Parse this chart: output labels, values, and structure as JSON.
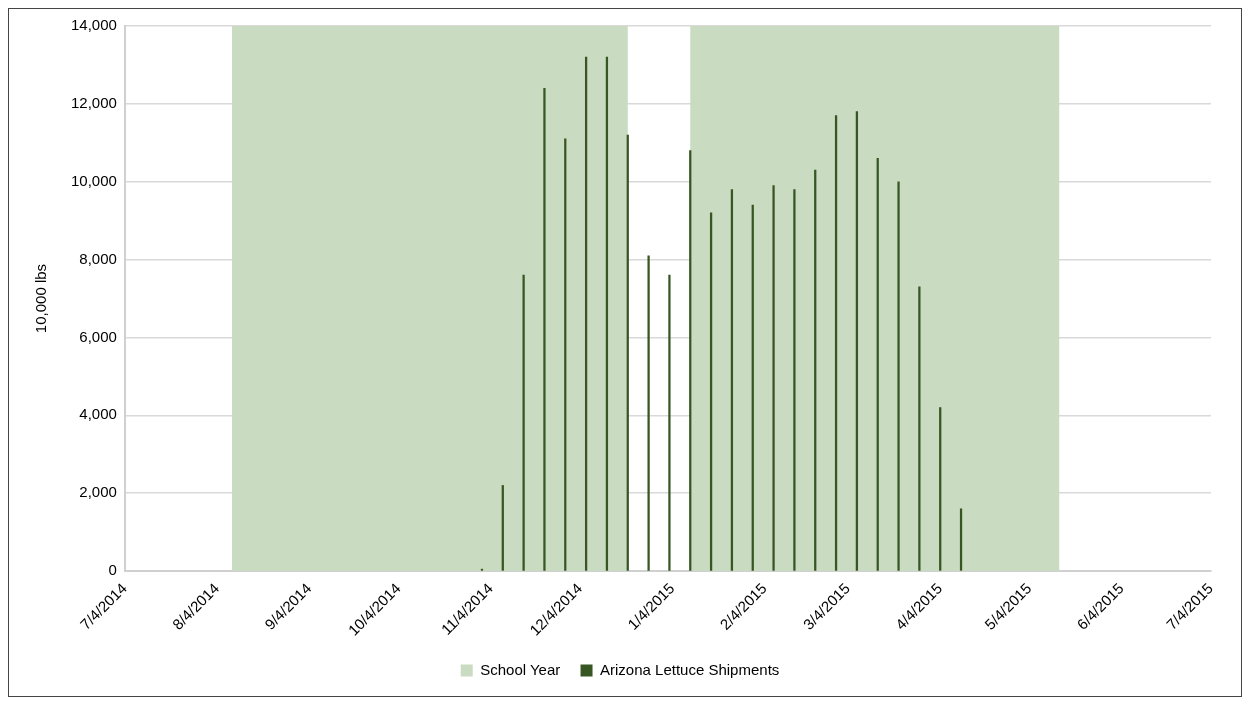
{
  "chart_data": {
    "type": "bar",
    "ylabel": "10,000 lbs",
    "x": [
      "2014-11-01",
      "2014-11-08",
      "2014-11-15",
      "2014-11-22",
      "2014-11-29",
      "2014-12-06",
      "2014-12-13",
      "2014-12-20",
      "2014-12-27",
      "2015-01-03",
      "2015-01-10",
      "2015-01-17",
      "2015-01-24",
      "2015-01-31",
      "2015-02-07",
      "2015-02-14",
      "2015-02-21",
      "2015-02-28",
      "2015-03-07",
      "2015-03-14",
      "2015-03-21",
      "2015-03-28",
      "2015-04-04",
      "2015-04-11"
    ],
    "series": [
      {
        "name": "Arizona Lettuce Shipments",
        "color": "#375623",
        "values": [
          50,
          2200,
          7600,
          12400,
          11100,
          13200,
          13200,
          11200,
          8100,
          7600,
          10800,
          9200,
          9800,
          9400,
          9900,
          9800,
          10300,
          11700,
          11800,
          10600,
          10000,
          7300,
          4200,
          1600
        ]
      }
    ],
    "bands": [
      {
        "axis": "x",
        "from": "2014-08-09",
        "to": "2014-12-20",
        "label": "School Year",
        "color": "#c9dbc1"
      },
      {
        "axis": "x",
        "from": "2015-01-10",
        "to": "2015-05-14",
        "color": "#c9dbc1"
      }
    ],
    "xlim": [
      "2014-07-04",
      "2015-07-04"
    ],
    "xticks": [
      {
        "value": "2014-07-04",
        "label": "7/4/2014"
      },
      {
        "value": "2014-08-04",
        "label": "8/4/2014"
      },
      {
        "value": "2014-09-04",
        "label": "9/4/2014"
      },
      {
        "value": "2014-10-04",
        "label": "10/4/2014"
      },
      {
        "value": "2014-11-04",
        "label": "11/4/2014"
      },
      {
        "value": "2014-12-04",
        "label": "12/4/2014"
      },
      {
        "value": "2015-01-04",
        "label": "1/4/2015"
      },
      {
        "value": "2015-02-04",
        "label": "2/4/2015"
      },
      {
        "value": "2015-03-04",
        "label": "3/4/2015"
      },
      {
        "value": "2015-04-04",
        "label": "4/4/2015"
      },
      {
        "value": "2015-05-04",
        "label": "5/4/2015"
      },
      {
        "value": "2015-06-04",
        "label": "6/4/2015"
      },
      {
        "value": "2015-07-04",
        "label": "7/4/2015"
      }
    ],
    "ylim": [
      0,
      14000
    ],
    "yticks": [
      {
        "value": 0,
        "label": "0"
      },
      {
        "value": 2000,
        "label": "2,000"
      },
      {
        "value": 4000,
        "label": "4,000"
      },
      {
        "value": 6000,
        "label": "6,000"
      },
      {
        "value": 8000,
        "label": "8,000"
      },
      {
        "value": 10000,
        "label": "10,000"
      },
      {
        "value": 12000,
        "label": "12,000"
      },
      {
        "value": 14000,
        "label": "14,000"
      }
    ],
    "grid": "y",
    "legend": "bottom"
  }
}
